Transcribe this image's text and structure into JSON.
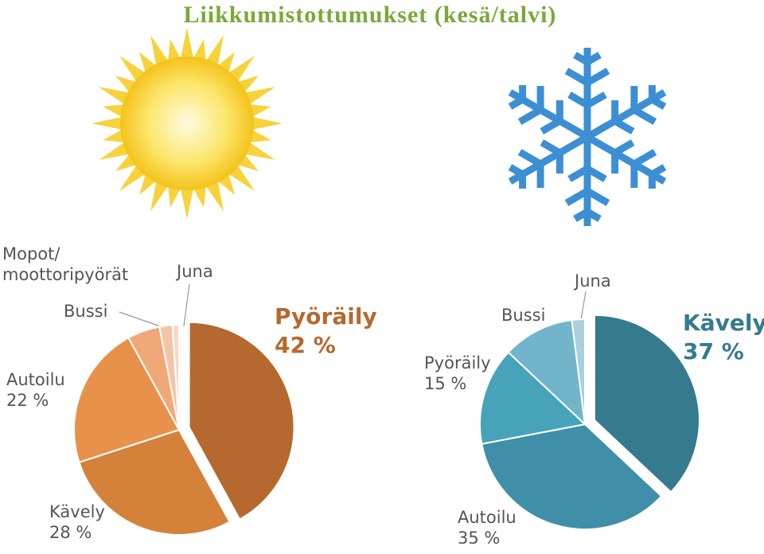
{
  "title": "Liikkumistottumukset (kesä/talvi)",
  "chart_data": [
    {
      "type": "pie",
      "categories": [
        "Pyöräily",
        "Kävely",
        "Autoilu",
        "Bussi",
        "Mopot/ moottoripyörät",
        "Juna"
      ],
      "values": [
        42,
        28,
        22,
        5,
        2,
        1
      ],
      "value_labels": [
        "42 %",
        "28 %",
        "22 %",
        null,
        null,
        null
      ],
      "colors": [
        "#b5692e",
        "#d4823a",
        "#e8914a",
        "#f0a878",
        "#f5c4a8",
        "#f8d8c8"
      ]
    },
    {
      "type": "pie",
      "categories": [
        "Kävely",
        "Autoilu",
        "Pyöräily",
        "Bussi",
        "Juna"
      ],
      "values": [
        37,
        35,
        15,
        11,
        2
      ],
      "value_labels": [
        "37 %",
        "35 %",
        "15 %",
        null,
        null
      ],
      "colors": [
        "#367a8e",
        "#3f8fa8",
        "#47a3ba",
        "#72b5cb",
        "#a9d0dc"
      ]
    }
  ]
}
